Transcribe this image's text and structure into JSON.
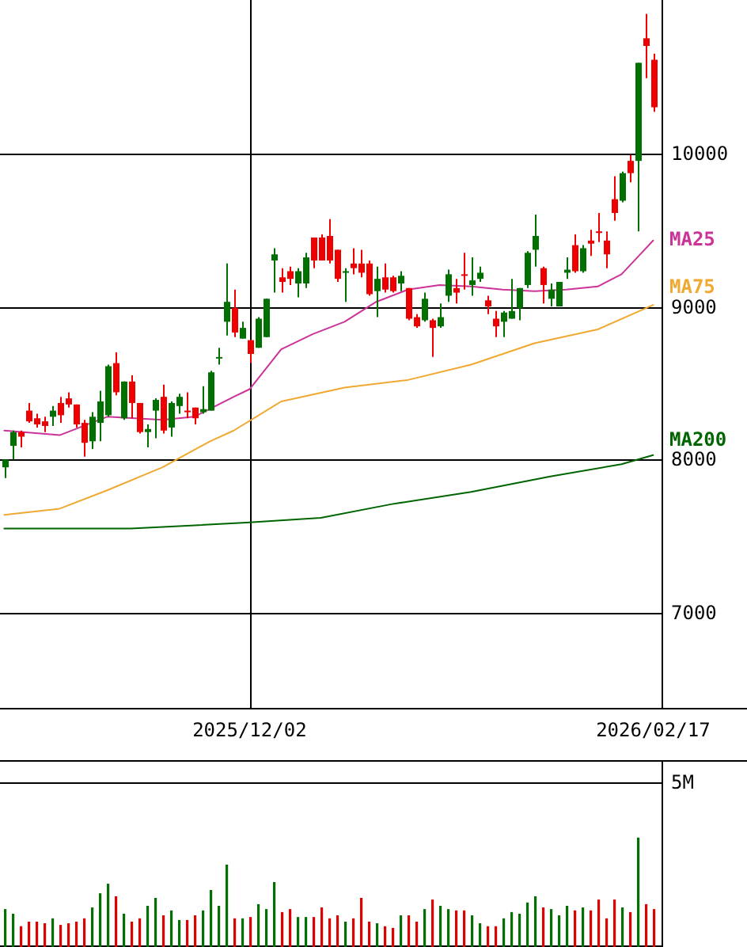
{
  "chart_data": [
    {
      "type": "candlestick",
      "categories": [
        null,
        null,
        null,
        null,
        null,
        null,
        null,
        null,
        null,
        null,
        null,
        null,
        null,
        null,
        null,
        null,
        null,
        null,
        null,
        null,
        null,
        null,
        null,
        null,
        null,
        null,
        null,
        null,
        null,
        null,
        null,
        "2025/12/02",
        null,
        null,
        null,
        null,
        null,
        null,
        null,
        null,
        null,
        null,
        null,
        null,
        null,
        null,
        null,
        null,
        null,
        null,
        null,
        null,
        null,
        null,
        null,
        null,
        null,
        null,
        null,
        null,
        null,
        null,
        null,
        null,
        null,
        null,
        null,
        null,
        null,
        null,
        null,
        null,
        null,
        null,
        null,
        null,
        null,
        null,
        null,
        null,
        null,
        null,
        "2026/02/17"
      ],
      "ohlc": [
        [
          7950,
          8000,
          7880,
          8000
        ],
        [
          8090,
          8190,
          8000,
          8180
        ],
        [
          8180,
          8190,
          8080,
          8150
        ],
        [
          8320,
          8370,
          8240,
          8250
        ],
        [
          8270,
          8300,
          8210,
          8230
        ],
        [
          8250,
          8280,
          8180,
          8220
        ],
        [
          8280,
          8350,
          8220,
          8320
        ],
        [
          8370,
          8410,
          8240,
          8290
        ],
        [
          8400,
          8440,
          8340,
          8360
        ],
        [
          8360,
          8360,
          8210,
          8230
        ],
        [
          8240,
          8260,
          8020,
          8110
        ],
        [
          8120,
          8310,
          8070,
          8280
        ],
        [
          8240,
          8450,
          8120,
          8380
        ],
        [
          8290,
          8620,
          8280,
          8610
        ],
        [
          8630,
          8700,
          8420,
          8440
        ],
        [
          8270,
          8510,
          8260,
          8510
        ],
        [
          8510,
          8550,
          8270,
          8370
        ],
        [
          8370,
          8370,
          8170,
          8180
        ],
        [
          8180,
          8230,
          8080,
          8200
        ],
        [
          8320,
          8400,
          8140,
          8390
        ],
        [
          8410,
          8490,
          8170,
          8190
        ],
        [
          8210,
          8380,
          8150,
          8370
        ],
        [
          8350,
          8430,
          8300,
          8410
        ],
        [
          8320,
          8440,
          8270,
          8310
        ],
        [
          8340,
          8340,
          8230,
          8270
        ],
        [
          8310,
          8480,
          8300,
          8330
        ],
        [
          8320,
          8580,
          8320,
          8570
        ],
        [
          8660,
          8730,
          8620,
          8670
        ],
        [
          8900,
          9280,
          8810,
          9030
        ],
        [
          8990,
          9110,
          8800,
          8830
        ],
        [
          8790,
          8900,
          8790,
          8860
        ],
        [
          8780,
          8780,
          8630,
          8690
        ],
        [
          8730,
          8930,
          8730,
          8920
        ],
        [
          8800,
          9050,
          8800,
          9050
        ],
        [
          9300,
          9380,
          9090,
          9340
        ],
        [
          9190,
          9250,
          9090,
          9160
        ],
        [
          9230,
          9260,
          9140,
          9180
        ],
        [
          9150,
          9250,
          9060,
          9230
        ],
        [
          9150,
          9350,
          9120,
          9320
        ],
        [
          9450,
          9450,
          9250,
          9300
        ],
        [
          9450,
          9470,
          9300,
          9300
        ],
        [
          9460,
          9570,
          9280,
          9300
        ],
        [
          9370,
          9370,
          9160,
          9180
        ],
        [
          9220,
          9250,
          9030,
          9230
        ],
        [
          9280,
          9380,
          9210,
          9250
        ],
        [
          9280,
          9370,
          9190,
          9220
        ],
        [
          9280,
          9300,
          9070,
          9080
        ],
        [
          9100,
          9260,
          8930,
          9180
        ],
        [
          9190,
          9280,
          9090,
          9110
        ],
        [
          9190,
          9200,
          9090,
          9100
        ],
        [
          9150,
          9230,
          9100,
          9200
        ],
        [
          9120,
          9120,
          8910,
          8920
        ],
        [
          8930,
          8950,
          8860,
          8870
        ],
        [
          8910,
          9090,
          8900,
          9050
        ],
        [
          8910,
          8920,
          8670,
          8860
        ],
        [
          8870,
          9020,
          8860,
          8930
        ],
        [
          9070,
          9240,
          9030,
          9210
        ],
        [
          9120,
          9180,
          9020,
          9090
        ],
        [
          9210,
          9350,
          9110,
          9200
        ],
        [
          9140,
          9320,
          9070,
          9170
        ],
        [
          9180,
          9260,
          9160,
          9220
        ],
        [
          9040,
          9070,
          8950,
          9000
        ],
        [
          8920,
          8970,
          8800,
          8870
        ],
        [
          8900,
          8970,
          8800,
          8960
        ],
        [
          8920,
          9180,
          8920,
          8970
        ],
        [
          8990,
          9120,
          8910,
          9120
        ],
        [
          9140,
          9360,
          9120,
          9350
        ],
        [
          9370,
          9600,
          9260,
          9460
        ],
        [
          9250,
          9260,
          9020,
          9140
        ],
        [
          9050,
          9150,
          9000,
          9110
        ],
        [
          9000,
          9160,
          9000,
          9160
        ],
        [
          9220,
          9320,
          9180,
          9240
        ],
        [
          9400,
          9470,
          9220,
          9230
        ],
        [
          9230,
          9400,
          9220,
          9380
        ],
        [
          9430,
          9500,
          9330,
          9410
        ],
        [
          9490,
          9610,
          9420,
          9480
        ],
        [
          9430,
          9490,
          9250,
          9340
        ],
        [
          9700,
          9850,
          9560,
          9610
        ],
        [
          9690,
          9880,
          9680,
          9870
        ],
        [
          9950,
          9990,
          9810,
          9870
        ],
        [
          9950,
          10590,
          9490,
          10590
        ],
        [
          10750,
          10910,
          10490,
          10700
        ],
        [
          10610,
          10650,
          10270,
          10300
        ]
      ],
      "series": [
        {
          "name": "MA25",
          "type": "line",
          "color": "#cc3399",
          "values": [
            8190,
            null,
            null,
            null,
            null,
            null,
            null,
            8160,
            null,
            null,
            null,
            null,
            null,
            8280,
            null,
            null,
            null,
            null,
            null,
            null,
            8260,
            null,
            null,
            null,
            8280,
            null,
            null,
            null,
            null,
            8410,
            null,
            8460,
            null,
            null,
            null,
            8720,
            null,
            null,
            null,
            8820,
            null,
            null,
            null,
            8900,
            null,
            null,
            null,
            9030,
            null,
            null,
            null,
            9110,
            null,
            null,
            null,
            9140,
            null,
            null,
            null,
            9130,
            null,
            null,
            null,
            9110,
            null,
            null,
            null,
            9100,
            null,
            null,
            null,
            9110,
            null,
            null,
            null,
            9130,
            null,
            null,
            9210,
            null,
            9320,
            null,
            9430
          ]
        },
        {
          "name": "MA75",
          "type": "line",
          "color": "#f0a830",
          "values": [
            7640,
            null,
            null,
            null,
            null,
            null,
            null,
            7680,
            null,
            null,
            null,
            null,
            null,
            7800,
            null,
            null,
            null,
            null,
            null,
            null,
            7950,
            null,
            null,
            null,
            null,
            null,
            8120,
            null,
            null,
            8190,
            null,
            null,
            null,
            null,
            null,
            8380,
            null,
            null,
            null,
            null,
            null,
            null,
            null,
            8470,
            null,
            null,
            null,
            null,
            null,
            null,
            null,
            8520,
            null,
            null,
            null,
            null,
            null,
            null,
            null,
            8620,
            null,
            null,
            null,
            null,
            null,
            null,
            null,
            8760,
            null,
            null,
            null,
            null,
            null,
            null,
            null,
            8850,
            null,
            null,
            null,
            null,
            null,
            null,
            9010
          ]
        },
        {
          "name": "MA200",
          "type": "line",
          "color": "#006400",
          "values": [
            7550,
            null,
            null,
            null,
            null,
            null,
            null,
            null,
            null,
            null,
            null,
            null,
            null,
            null,
            null,
            null,
            7550,
            null,
            null,
            null,
            null,
            null,
            null,
            null,
            null,
            null,
            null,
            null,
            null,
            null,
            null,
            7590,
            null,
            null,
            null,
            null,
            null,
            null,
            null,
            null,
            7620,
            null,
            null,
            null,
            null,
            null,
            null,
            null,
            null,
            7710,
            null,
            null,
            null,
            null,
            null,
            null,
            null,
            null,
            null,
            7790,
            null,
            null,
            null,
            null,
            null,
            null,
            null,
            null,
            null,
            7890,
            null,
            null,
            null,
            null,
            null,
            null,
            null,
            null,
            7970,
            null,
            null,
            null,
            8030
          ]
        }
      ],
      "ylim": [
        6380,
        11000
      ],
      "yticks": [
        7000,
        8000,
        9000,
        10000
      ],
      "grid": true
    },
    {
      "type": "bar",
      "categories": [
        null,
        null,
        null,
        null,
        null,
        null,
        null,
        null,
        null,
        null,
        null,
        null,
        null,
        null,
        null,
        null,
        null,
        null,
        null,
        null,
        null,
        null,
        null,
        null,
        null,
        null,
        null,
        null,
        null,
        null,
        null,
        null,
        null,
        null,
        null,
        null,
        null,
        null,
        null,
        null,
        null,
        null,
        null,
        null,
        null,
        null,
        null,
        null,
        null,
        null,
        null,
        null,
        null,
        null,
        null,
        null,
        null,
        null,
        null,
        null,
        null,
        null,
        null,
        null,
        null,
        null,
        null,
        null,
        null,
        null,
        null,
        null,
        null,
        null,
        null,
        null,
        null,
        null,
        null,
        null,
        null,
        null,
        null
      ],
      "values": [
        1.15,
        1.01,
        0.63,
        0.77,
        0.77,
        0.72,
        0.87,
        0.67,
        0.72,
        0.77,
        0.87,
        1.2,
        1.63,
        1.92,
        1.54,
        1.01,
        0.77,
        0.87,
        1.25,
        1.49,
        0.96,
        1.11,
        0.82,
        0.82,
        0.96,
        1.11,
        1.73,
        1.25,
        2.5,
        0.87,
        0.87,
        0.91,
        1.3,
        1.15,
        1.97,
        1.06,
        1.15,
        0.91,
        0.91,
        0.91,
        1.2,
        0.87,
        0.96,
        0.77,
        0.87,
        1.49,
        0.77,
        0.72,
        0.63,
        0.58,
        0.96,
        0.96,
        0.77,
        1.15,
        1.44,
        1.25,
        1.15,
        1.11,
        1.11,
        0.96,
        0.72,
        0.63,
        0.63,
        0.87,
        1.06,
        1.01,
        1.35,
        1.54,
        1.2,
        1.15,
        0.96,
        1.25,
        1.11,
        1.2,
        1.11,
        1.44,
        0.87,
        1.44,
        1.2,
        1.06,
        3.32,
        1.3,
        1.15
      ],
      "colors": [
        "#007000",
        "#007000",
        "#e00000",
        "#e00000",
        "#e00000",
        "#e00000",
        "#007000",
        "#e00000",
        "#e00000",
        "#e00000",
        "#e00000",
        "#007000",
        "#007000",
        "#007000",
        "#e00000",
        "#007000",
        "#e00000",
        "#e00000",
        "#007000",
        "#007000",
        "#e00000",
        "#007000",
        "#007000",
        "#e00000",
        "#e00000",
        "#007000",
        "#007000",
        "#007000",
        "#007000",
        "#e00000",
        "#007000",
        "#e00000",
        "#007000",
        "#007000",
        "#007000",
        "#e00000",
        "#e00000",
        "#007000",
        "#007000",
        "#e00000",
        "#e00000",
        "#e00000",
        "#e00000",
        "#007000",
        "#e00000",
        "#e00000",
        "#e00000",
        "#007000",
        "#e00000",
        "#e00000",
        "#007000",
        "#e00000",
        "#e00000",
        "#007000",
        "#e00000",
        "#007000",
        "#007000",
        "#e00000",
        "#e00000",
        "#007000",
        "#007000",
        "#e00000",
        "#e00000",
        "#007000",
        "#007000",
        "#007000",
        "#007000",
        "#007000",
        "#e00000",
        "#007000",
        "#007000",
        "#007000",
        "#e00000",
        "#007000",
        "#e00000",
        "#e00000",
        "#e00000",
        "#e00000",
        "#007000",
        "#e00000",
        "#007000",
        "#e00000",
        "#e00000"
      ],
      "ylim": [
        0,
        5.67
      ],
      "yticks": [
        {
          "value": 0,
          "label": null
        },
        {
          "value": 5,
          "label": "5M"
        }
      ],
      "grid": "y",
      "tick_labels": "y"
    }
  ]
}
